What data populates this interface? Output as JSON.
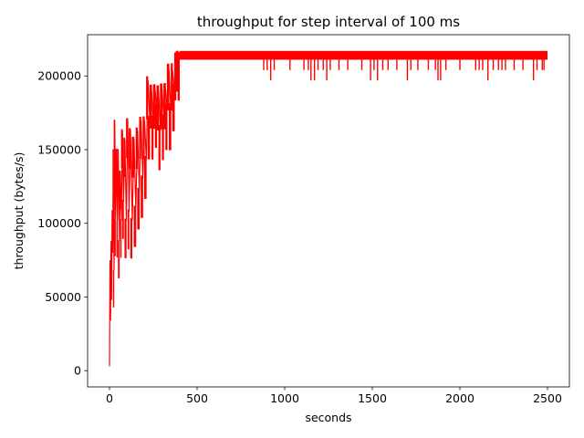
{
  "chart_data": {
    "type": "line",
    "title": "throughput for step interval of 100 ms",
    "xlabel": "seconds",
    "ylabel": "throughput (bytes/s)",
    "xlim": [
      -125,
      2625
    ],
    "ylim": [
      -11000,
      228000
    ],
    "x_ticks": [
      0,
      500,
      1000,
      1500,
      2000,
      2500
    ],
    "x_tick_labels": [
      "0",
      "500",
      "1000",
      "1500",
      "2000",
      "2500"
    ],
    "y_ticks": [
      0,
      50000,
      100000,
      150000,
      200000
    ],
    "y_tick_labels": [
      "0",
      "50000",
      "100000",
      "150000",
      "200000"
    ],
    "grid": false,
    "series": [
      {
        "color": "#ff0000",
        "description_values": {
          "x": [
            0,
            3,
            6,
            9,
            12,
            15,
            18,
            22,
            26,
            30,
            35,
            40,
            45,
            50,
            56,
            62,
            68,
            74,
            80,
            88,
            96,
            104,
            112,
            120,
            130,
            140,
            150,
            160,
            170,
            180,
            190,
            200,
            210,
            220,
            230,
            240,
            250,
            260,
            270,
            280,
            290,
            300,
            310,
            320,
            330,
            340,
            350,
            360,
            370,
            380,
            390,
            400,
            500,
            700,
            900,
            1000,
            1100,
            1200,
            1300,
            1400,
            1500,
            1600,
            1700,
            1800,
            1900,
            2000,
            2100,
            2200,
            2300,
            2400,
            2500
          ],
          "y": [
            3000,
            75000,
            34000,
            88000,
            48000,
            109000,
            80000,
            150000,
            68000,
            170000,
            103000,
            150000,
            102000,
            150000,
            88000,
            135000,
            102000,
            163000,
            115000,
            157000,
            102000,
            170000,
            108000,
            163000,
            102000,
            157000,
            110000,
            163000,
            122000,
            170000,
            130000,
            170000,
            143000,
            197000,
            170000,
            191000,
            170000,
            191000,
            178000,
            190000,
            163000,
            191000,
            170000,
            191000,
            177000,
            204000,
            177000,
            204000,
            190000,
            211000,
            217000,
            211000,
            217000,
            211000,
            217000,
            211000,
            217000,
            211000,
            217000,
            211000,
            217000,
            211000,
            217000,
            211000,
            217000,
            211000,
            217000,
            211000,
            217000,
            211000,
            217000
          ]
        },
        "steady_band": [
          211000,
          217000
        ],
        "dips": [
          {
            "x": 880,
            "y": 204000
          },
          {
            "x": 900,
            "y": 204000
          },
          {
            "x": 920,
            "y": 197000
          },
          {
            "x": 940,
            "y": 204000
          },
          {
            "x": 1030,
            "y": 204000
          },
          {
            "x": 1110,
            "y": 204000
          },
          {
            "x": 1135,
            "y": 204000
          },
          {
            "x": 1150,
            "y": 197000
          },
          {
            "x": 1170,
            "y": 197000
          },
          {
            "x": 1190,
            "y": 204000
          },
          {
            "x": 1220,
            "y": 204000
          },
          {
            "x": 1240,
            "y": 197000
          },
          {
            "x": 1260,
            "y": 204000
          },
          {
            "x": 1310,
            "y": 204000
          },
          {
            "x": 1360,
            "y": 204000
          },
          {
            "x": 1440,
            "y": 204000
          },
          {
            "x": 1490,
            "y": 197000
          },
          {
            "x": 1510,
            "y": 204000
          },
          {
            "x": 1530,
            "y": 197000
          },
          {
            "x": 1560,
            "y": 204000
          },
          {
            "x": 1590,
            "y": 204000
          },
          {
            "x": 1640,
            "y": 204000
          },
          {
            "x": 1700,
            "y": 197000
          },
          {
            "x": 1720,
            "y": 204000
          },
          {
            "x": 1760,
            "y": 204000
          },
          {
            "x": 1820,
            "y": 204000
          },
          {
            "x": 1860,
            "y": 204000
          },
          {
            "x": 1875,
            "y": 197000
          },
          {
            "x": 1890,
            "y": 197000
          },
          {
            "x": 1920,
            "y": 204000
          },
          {
            "x": 2000,
            "y": 204000
          },
          {
            "x": 2090,
            "y": 204000
          },
          {
            "x": 2110,
            "y": 204000
          },
          {
            "x": 2130,
            "y": 204000
          },
          {
            "x": 2160,
            "y": 197000
          },
          {
            "x": 2190,
            "y": 204000
          },
          {
            "x": 2220,
            "y": 204000
          },
          {
            "x": 2240,
            "y": 204000
          },
          {
            "x": 2260,
            "y": 204000
          },
          {
            "x": 2310,
            "y": 204000
          },
          {
            "x": 2360,
            "y": 204000
          },
          {
            "x": 2420,
            "y": 197000
          },
          {
            "x": 2440,
            "y": 204000
          },
          {
            "x": 2470,
            "y": 204000
          },
          {
            "x": 2480,
            "y": 204000
          }
        ]
      }
    ]
  }
}
